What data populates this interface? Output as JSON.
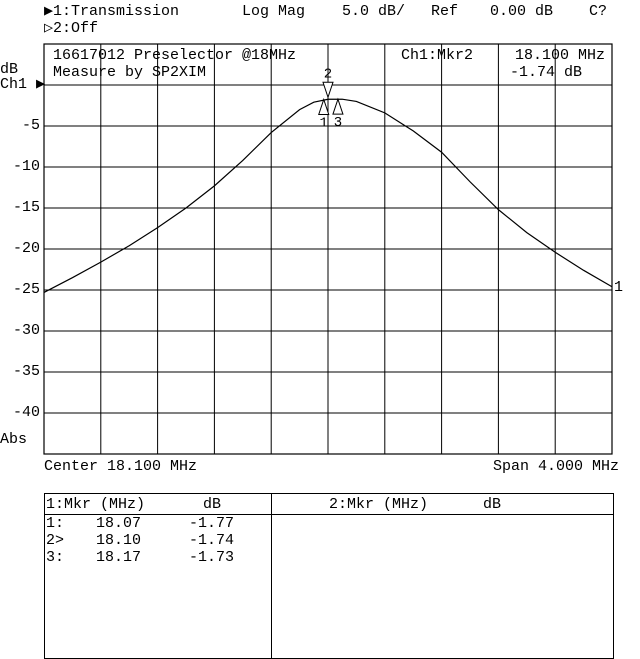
{
  "header": {
    "channel1": "▶1:Transmission",
    "format": "Log Mag",
    "scale": "5.0 dB/",
    "ref_label": "Ref",
    "ref_value": "0.00 dB",
    "cal": "C?",
    "channel2": "▷2:Off"
  },
  "plot_text": {
    "title": "16617012 Preselector @18MHz",
    "subtitle": "Measure by SP2XIM",
    "active_marker": "Ch1:Mkr2",
    "active_freq": "18.100 MHz",
    "active_value": "-1.74 dB",
    "y_unit": "dB",
    "ch_label": "Ch1 ▶",
    "abs_label": "Abs",
    "trace_end_label": "1"
  },
  "footer": {
    "center": "Center 18.100 MHz",
    "span": "Span 4.000 MHz"
  },
  "marker_table": {
    "ch1_header": {
      "mkr": "1:Mkr (MHz)",
      "db": "dB"
    },
    "ch2_header": {
      "mkr": "2:Mkr (MHz)",
      "db": "dB"
    },
    "rows": [
      {
        "id": "1:",
        "freq": "18.07",
        "db": "-1.77"
      },
      {
        "id": "2>",
        "freq": "18.10",
        "db": "-1.74"
      },
      {
        "id": "3:",
        "freq": "18.17",
        "db": "-1.73"
      }
    ]
  },
  "chart_data": {
    "type": "line",
    "xlabel": "",
    "ylabel": "dB",
    "xlim": [
      16.1,
      20.1
    ],
    "ylim": [
      -45,
      5
    ],
    "grid": true,
    "y_ticks": [
      "-5",
      "-10",
      "-15",
      "-20",
      "-25",
      "-30",
      "-35",
      "-40"
    ],
    "y_tick_values": [
      -5,
      -10,
      -15,
      -20,
      -25,
      -30,
      -35,
      -40
    ],
    "series": [
      {
        "x": [
          16.1,
          16.3,
          16.5,
          16.7,
          16.9,
          17.1,
          17.3,
          17.5,
          17.7,
          17.9,
          18.0,
          18.1,
          18.2,
          18.3,
          18.5,
          18.7,
          18.9,
          19.1,
          19.3,
          19.5,
          19.7,
          19.9,
          20.1
        ],
        "y": [
          -25.3,
          -23.5,
          -21.6,
          -19.6,
          -17.4,
          -15.0,
          -12.3,
          -9.2,
          -5.8,
          -3.0,
          -2.1,
          -1.74,
          -1.73,
          -2.0,
          -3.4,
          -5.6,
          -8.2,
          -11.8,
          -15.2,
          -18.0,
          -20.4,
          -22.6,
          -24.6
        ]
      }
    ],
    "markers": [
      {
        "label": "1",
        "x": 18.07,
        "y": -1.77
      },
      {
        "label": "2",
        "x": 18.1,
        "y": -1.74,
        "active": true
      },
      {
        "label": "3",
        "x": 18.17,
        "y": -1.73
      }
    ]
  }
}
